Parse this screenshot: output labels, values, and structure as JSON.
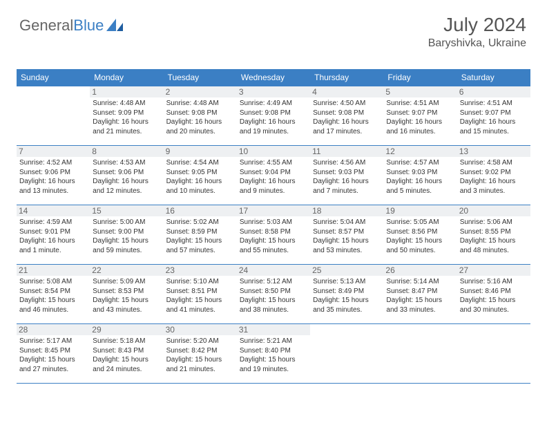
{
  "brand": {
    "part1": "General",
    "part2": "Blue"
  },
  "title": "July 2024",
  "location": "Baryshivka, Ukraine",
  "colors": {
    "header_bg": "#3b7fc4",
    "header_text": "#ffffff",
    "daynum_bg": "#eef0f2",
    "border": "#3b7fc4",
    "text": "#333333",
    "title_color": "#555555"
  },
  "weekdays": [
    "Sunday",
    "Monday",
    "Tuesday",
    "Wednesday",
    "Thursday",
    "Friday",
    "Saturday"
  ],
  "grid": [
    [
      {
        "day": "",
        "lines": []
      },
      {
        "day": "1",
        "lines": [
          "Sunrise: 4:48 AM",
          "Sunset: 9:09 PM",
          "Daylight: 16 hours and 21 minutes."
        ]
      },
      {
        "day": "2",
        "lines": [
          "Sunrise: 4:48 AM",
          "Sunset: 9:08 PM",
          "Daylight: 16 hours and 20 minutes."
        ]
      },
      {
        "day": "3",
        "lines": [
          "Sunrise: 4:49 AM",
          "Sunset: 9:08 PM",
          "Daylight: 16 hours and 19 minutes."
        ]
      },
      {
        "day": "4",
        "lines": [
          "Sunrise: 4:50 AM",
          "Sunset: 9:08 PM",
          "Daylight: 16 hours and 17 minutes."
        ]
      },
      {
        "day": "5",
        "lines": [
          "Sunrise: 4:51 AM",
          "Sunset: 9:07 PM",
          "Daylight: 16 hours and 16 minutes."
        ]
      },
      {
        "day": "6",
        "lines": [
          "Sunrise: 4:51 AM",
          "Sunset: 9:07 PM",
          "Daylight: 16 hours and 15 minutes."
        ]
      }
    ],
    [
      {
        "day": "7",
        "lines": [
          "Sunrise: 4:52 AM",
          "Sunset: 9:06 PM",
          "Daylight: 16 hours and 13 minutes."
        ]
      },
      {
        "day": "8",
        "lines": [
          "Sunrise: 4:53 AM",
          "Sunset: 9:06 PM",
          "Daylight: 16 hours and 12 minutes."
        ]
      },
      {
        "day": "9",
        "lines": [
          "Sunrise: 4:54 AM",
          "Sunset: 9:05 PM",
          "Daylight: 16 hours and 10 minutes."
        ]
      },
      {
        "day": "10",
        "lines": [
          "Sunrise: 4:55 AM",
          "Sunset: 9:04 PM",
          "Daylight: 16 hours and 9 minutes."
        ]
      },
      {
        "day": "11",
        "lines": [
          "Sunrise: 4:56 AM",
          "Sunset: 9:03 PM",
          "Daylight: 16 hours and 7 minutes."
        ]
      },
      {
        "day": "12",
        "lines": [
          "Sunrise: 4:57 AM",
          "Sunset: 9:03 PM",
          "Daylight: 16 hours and 5 minutes."
        ]
      },
      {
        "day": "13",
        "lines": [
          "Sunrise: 4:58 AM",
          "Sunset: 9:02 PM",
          "Daylight: 16 hours and 3 minutes."
        ]
      }
    ],
    [
      {
        "day": "14",
        "lines": [
          "Sunrise: 4:59 AM",
          "Sunset: 9:01 PM",
          "Daylight: 16 hours and 1 minute."
        ]
      },
      {
        "day": "15",
        "lines": [
          "Sunrise: 5:00 AM",
          "Sunset: 9:00 PM",
          "Daylight: 15 hours and 59 minutes."
        ]
      },
      {
        "day": "16",
        "lines": [
          "Sunrise: 5:02 AM",
          "Sunset: 8:59 PM",
          "Daylight: 15 hours and 57 minutes."
        ]
      },
      {
        "day": "17",
        "lines": [
          "Sunrise: 5:03 AM",
          "Sunset: 8:58 PM",
          "Daylight: 15 hours and 55 minutes."
        ]
      },
      {
        "day": "18",
        "lines": [
          "Sunrise: 5:04 AM",
          "Sunset: 8:57 PM",
          "Daylight: 15 hours and 53 minutes."
        ]
      },
      {
        "day": "19",
        "lines": [
          "Sunrise: 5:05 AM",
          "Sunset: 8:56 PM",
          "Daylight: 15 hours and 50 minutes."
        ]
      },
      {
        "day": "20",
        "lines": [
          "Sunrise: 5:06 AM",
          "Sunset: 8:55 PM",
          "Daylight: 15 hours and 48 minutes."
        ]
      }
    ],
    [
      {
        "day": "21",
        "lines": [
          "Sunrise: 5:08 AM",
          "Sunset: 8:54 PM",
          "Daylight: 15 hours and 46 minutes."
        ]
      },
      {
        "day": "22",
        "lines": [
          "Sunrise: 5:09 AM",
          "Sunset: 8:53 PM",
          "Daylight: 15 hours and 43 minutes."
        ]
      },
      {
        "day": "23",
        "lines": [
          "Sunrise: 5:10 AM",
          "Sunset: 8:51 PM",
          "Daylight: 15 hours and 41 minutes."
        ]
      },
      {
        "day": "24",
        "lines": [
          "Sunrise: 5:12 AM",
          "Sunset: 8:50 PM",
          "Daylight: 15 hours and 38 minutes."
        ]
      },
      {
        "day": "25",
        "lines": [
          "Sunrise: 5:13 AM",
          "Sunset: 8:49 PM",
          "Daylight: 15 hours and 35 minutes."
        ]
      },
      {
        "day": "26",
        "lines": [
          "Sunrise: 5:14 AM",
          "Sunset: 8:47 PM",
          "Daylight: 15 hours and 33 minutes."
        ]
      },
      {
        "day": "27",
        "lines": [
          "Sunrise: 5:16 AM",
          "Sunset: 8:46 PM",
          "Daylight: 15 hours and 30 minutes."
        ]
      }
    ],
    [
      {
        "day": "28",
        "lines": [
          "Sunrise: 5:17 AM",
          "Sunset: 8:45 PM",
          "Daylight: 15 hours and 27 minutes."
        ]
      },
      {
        "day": "29",
        "lines": [
          "Sunrise: 5:18 AM",
          "Sunset: 8:43 PM",
          "Daylight: 15 hours and 24 minutes."
        ]
      },
      {
        "day": "30",
        "lines": [
          "Sunrise: 5:20 AM",
          "Sunset: 8:42 PM",
          "Daylight: 15 hours and 21 minutes."
        ]
      },
      {
        "day": "31",
        "lines": [
          "Sunrise: 5:21 AM",
          "Sunset: 8:40 PM",
          "Daylight: 15 hours and 19 minutes."
        ]
      },
      {
        "day": "",
        "lines": []
      },
      {
        "day": "",
        "lines": []
      },
      {
        "day": "",
        "lines": []
      }
    ]
  ]
}
